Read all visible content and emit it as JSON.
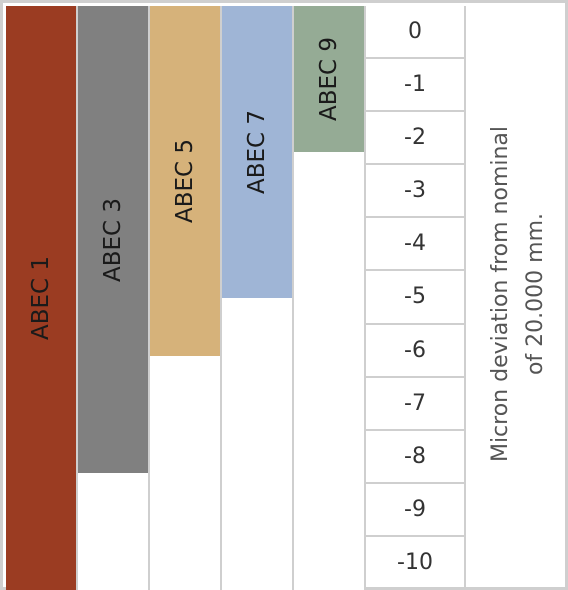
{
  "chart_data": {
    "type": "bar",
    "categories": [
      "ABEC 1",
      "ABEC 3",
      "ABEC 5",
      "ABEC 7",
      "ABEC 9"
    ],
    "values": [
      -10,
      -8,
      -6,
      -5,
      -2.5
    ],
    "ylim": [
      -10,
      0
    ],
    "yticks": [
      "0",
      "-1",
      "-2",
      "-3",
      "-4",
      "-5",
      "-6",
      "-7",
      "-8",
      "-9",
      "-10"
    ],
    "ylabel_lines": [
      "Micron deviation from nominal",
      "of 20.000 mm."
    ],
    "colors": [
      "#9b3c22",
      "#808080",
      "#d6b27a",
      "#9fb5d6",
      "#95ab95"
    ],
    "grid": true
  }
}
